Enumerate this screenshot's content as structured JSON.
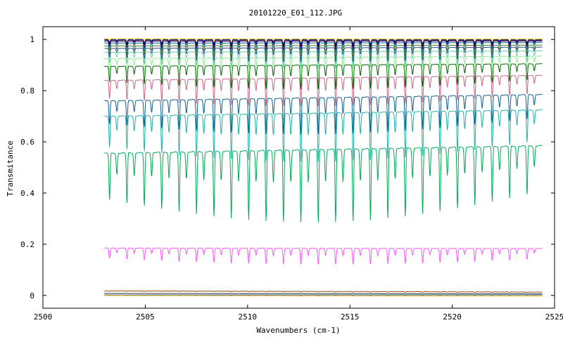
{
  "chart_data": {
    "type": "line",
    "title": "20101220_E01_112.JPG",
    "xlabel": "Wavenumbers (cm-1)",
    "ylabel": "Transmitance",
    "xlim": [
      2500,
      2525
    ],
    "ylim": [
      -0.05,
      1.05
    ],
    "xticks": [
      2500,
      2505,
      2510,
      2515,
      2520,
      2525
    ],
    "yticks": [
      0,
      0.2,
      0.4,
      0.6,
      0.8,
      1
    ],
    "ytick_labels": [
      "0",
      "0.2",
      "0.4",
      "0.6",
      "0.8",
      "1"
    ],
    "grid": false,
    "legend": "none",
    "x_range": [
      2503.0,
      2524.4
    ],
    "line_spacing_cm1": 0.85,
    "series": [
      {
        "color": "#00aa55",
        "baseline_left": 0.555,
        "baseline_right": 0.585,
        "depth": 0.18
      },
      {
        "color": "#ff55ff",
        "baseline_left": 0.185,
        "baseline_right": 0.183,
        "depth": 0.04
      },
      {
        "color": "#20b2aa",
        "baseline_left": 0.7,
        "baseline_right": 0.725,
        "depth": 0.12
      },
      {
        "color": "#105f8f",
        "baseline_left": 0.76,
        "baseline_right": 0.785,
        "depth": 0.09
      },
      {
        "color": "#cc6688",
        "baseline_left": 0.84,
        "baseline_right": 0.86,
        "depth": 0.07
      },
      {
        "color": "#006400",
        "baseline_left": 0.895,
        "baseline_right": 0.905,
        "depth": 0.06
      },
      {
        "color": "#90ee90",
        "baseline_left": 0.925,
        "baseline_right": 0.935,
        "depth": 0.05
      },
      {
        "color": "#66cdaa",
        "baseline_left": 0.95,
        "baseline_right": 0.955,
        "depth": 0.04
      },
      {
        "color": "#1e4f8f",
        "baseline_left": 0.965,
        "baseline_right": 0.97,
        "depth": 0.035
      },
      {
        "color": "#556b2f",
        "baseline_left": 0.975,
        "baseline_right": 0.978,
        "depth": 0.03
      },
      {
        "color": "#008b8b",
        "baseline_left": 0.985,
        "baseline_right": 0.988,
        "depth": 0.025
      },
      {
        "color": "#4b0082",
        "baseline_left": 0.992,
        "baseline_right": 0.993,
        "depth": 0.02
      },
      {
        "color": "#000000",
        "baseline_left": 0.997,
        "baseline_right": 0.997,
        "depth": 0.015
      },
      {
        "color": "#0000cd",
        "baseline_left": 1.0,
        "baseline_right": 1.0,
        "depth": 0.012
      },
      {
        "color": "#ffd700",
        "baseline_left": 1.003,
        "baseline_right": 1.002,
        "depth": 0.008
      },
      {
        "color": "#8b4513",
        "baseline_left": 0.018,
        "baseline_right": 0.013,
        "depth": 0.002
      },
      {
        "color": "#333333",
        "baseline_left": 0.008,
        "baseline_right": 0.006,
        "depth": 0.001
      },
      {
        "color": "#1f77b4",
        "baseline_left": 0.002,
        "baseline_right": 0.002,
        "depth": 0.001
      },
      {
        "color": "#ffa500",
        "baseline_left": 0.0,
        "baseline_right": -0.002,
        "depth": 0.001
      }
    ]
  }
}
